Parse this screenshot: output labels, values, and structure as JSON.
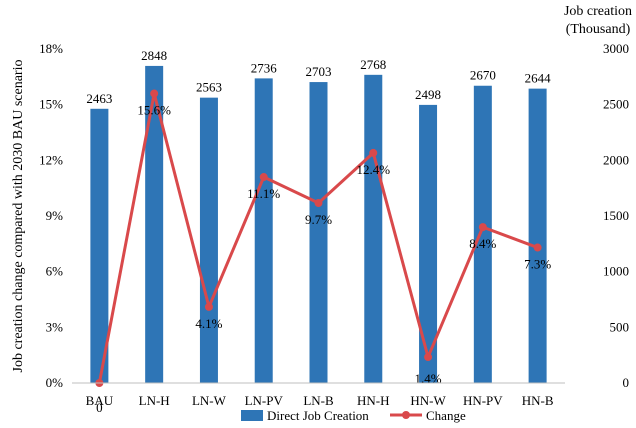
{
  "chart_data": {
    "type": "bar",
    "categories": [
      "BAU",
      "LN-H",
      "LN-W",
      "LN-PV",
      "LN-B",
      "HN-H",
      "HN-W",
      "HN-PV",
      "HN-B"
    ],
    "series": [
      {
        "name": "Direct Job Creation",
        "type": "bar",
        "axis": "right",
        "color": "#2E75B6",
        "values": [
          2463,
          2848,
          2563,
          2736,
          2703,
          2768,
          2498,
          2670,
          2644
        ],
        "labels": [
          "2463",
          "2848",
          "2563",
          "2736",
          "2703",
          "2768",
          "2498",
          "2670",
          "2644"
        ]
      },
      {
        "name": "Change",
        "type": "line",
        "axis": "left",
        "color": "#D9494B",
        "values": [
          0,
          15.6,
          4.1,
          11.1,
          9.7,
          12.4,
          1.4,
          8.4,
          7.3
        ],
        "labels": [
          "0",
          "15.6%",
          "4.1%",
          "11.1%",
          "9.7%",
          "12.4%",
          "1.4%",
          "8.4%",
          "7.3%"
        ]
      }
    ],
    "ylabel": "Job creation change compared with 2030 BAU scenario",
    "y2label": [
      "Job creation",
      "(Thousand)"
    ],
    "ylim": [
      0,
      18
    ],
    "y2lim": [
      0,
      3000
    ],
    "yticks": [
      "0%",
      "3%",
      "6%",
      "9%",
      "12%",
      "15%",
      "18%"
    ],
    "y2ticks": [
      "0",
      "500",
      "1000",
      "1500",
      "2000",
      "2500",
      "3000"
    ],
    "grid": false,
    "legend_position": "bottom"
  }
}
